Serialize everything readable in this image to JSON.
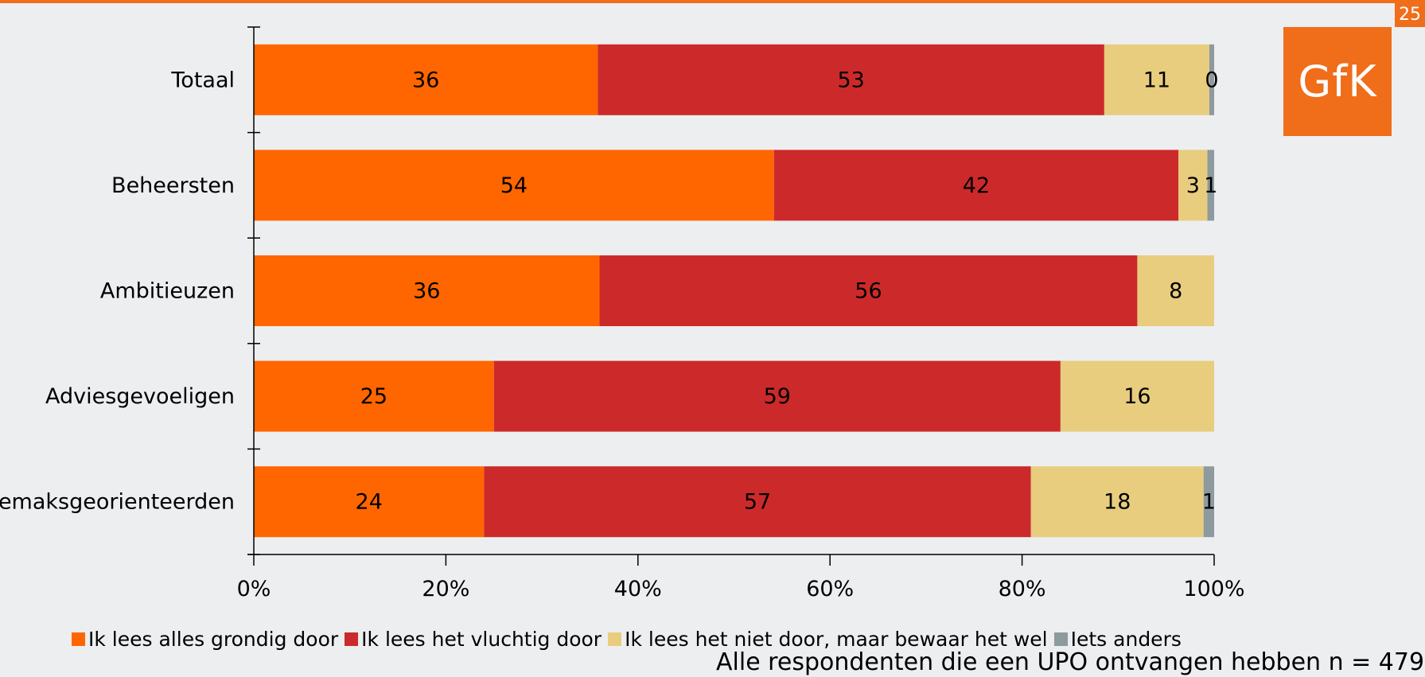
{
  "page": {
    "number": "25",
    "logo_text": "GfK"
  },
  "colors": {
    "accent": "#f06d1a",
    "series": [
      "#ff6600",
      "#cc2a2a",
      "#e8cd7f",
      "#8d9a9e"
    ]
  },
  "footnote": "Alle respondenten die een UPO ontvangen hebben n = 479",
  "chart_data": {
    "type": "bar",
    "orientation": "horizontal",
    "stacked": "percent",
    "categories": [
      "Totaal",
      "Beheersten",
      "Ambitieuzen",
      "Adviesgevoeligen",
      "Gemaksgeorienteerden"
    ],
    "series": [
      {
        "name": "Ik lees alles grondig door",
        "values": [
          36,
          54,
          36,
          25,
          24
        ]
      },
      {
        "name": "Ik lees het vluchtig door",
        "values": [
          53,
          42,
          56,
          59,
          57
        ]
      },
      {
        "name": "Ik lees het niet door, maar bewaar het wel",
        "values": [
          11,
          3,
          8,
          16,
          18
        ]
      },
      {
        "name": "Iets anders",
        "values": [
          0.5,
          0.7,
          null,
          null,
          1.1
        ]
      }
    ],
    "data_labels": [
      [
        "36",
        "53",
        "11",
        "0"
      ],
      [
        "54",
        "42",
        "3",
        "1"
      ],
      [
        "36",
        "56",
        "8",
        null
      ],
      [
        "25",
        "59",
        "16",
        null
      ],
      [
        "24",
        "57",
        "18",
        "1"
      ]
    ],
    "x_ticks": [
      "0%",
      "20%",
      "40%",
      "60%",
      "80%",
      "100%"
    ],
    "xlim": [
      0,
      100
    ],
    "legend_position": "bottom",
    "grid": false
  }
}
